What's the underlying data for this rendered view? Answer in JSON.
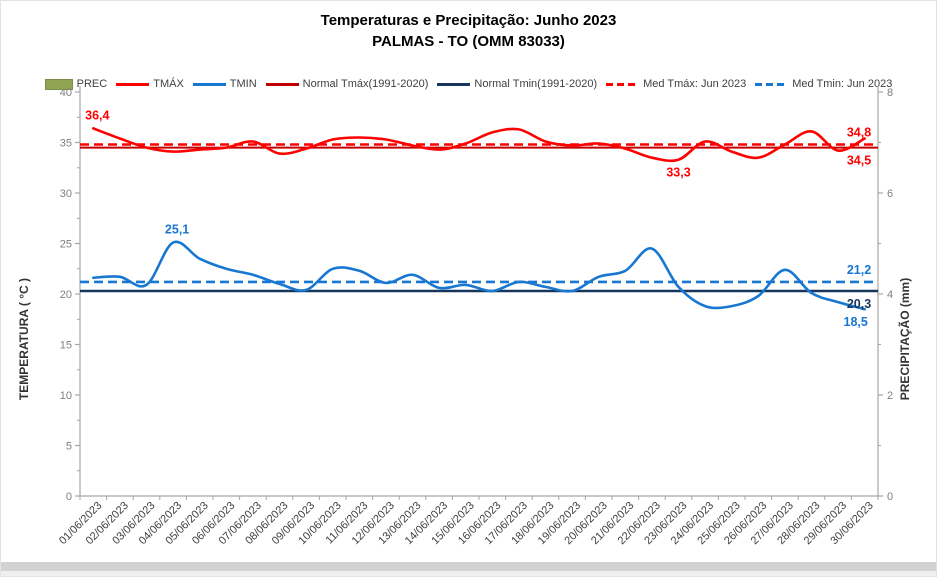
{
  "title": {
    "line1": "Temperaturas e Precipitação: Junho 2023",
    "line2": "PALMAS - TO (OMM 83033)"
  },
  "legend": {
    "items": [
      {
        "label": "PREC",
        "marker": "box",
        "color": "#8fa553",
        "border": "#7a8e44"
      },
      {
        "label": "TMÁX",
        "marker": "line",
        "color": "#ff0000"
      },
      {
        "label": "TMIN",
        "marker": "line",
        "color": "#1777d1"
      },
      {
        "label": "Normal Tmáx(1991-2020)",
        "marker": "line",
        "color": "#c00000"
      },
      {
        "label": "Normal Tmin(1991-2020)",
        "marker": "line",
        "color": "#17365d"
      },
      {
        "label": "Med Tmáx: Jun 2023",
        "marker": "dashed",
        "color": "#ff0000"
      },
      {
        "label": "Med Tmin: Jun 2023",
        "marker": "dashed",
        "color": "#1777d1"
      }
    ]
  },
  "axes": {
    "left": {
      "label": "TEMPERATURA ( °C )",
      "ticks": [
        0,
        5,
        10,
        15,
        20,
        25,
        30,
        35,
        40
      ],
      "range": [
        0,
        40
      ]
    },
    "right": {
      "label": "PRECIPITAÇÃO  (mm)",
      "ticks": [
        0,
        2,
        4,
        6,
        8
      ],
      "range": [
        0,
        8
      ]
    },
    "x": {
      "labels": [
        "01/06/2023",
        "02/06/2023",
        "03/06/2023",
        "04/06/2023",
        "05/06/2023",
        "06/06/2023",
        "07/06/2023",
        "08/06/2023",
        "09/06/2023",
        "10/06/2023",
        "11/06/2023",
        "12/06/2023",
        "13/06/2023",
        "14/06/2023",
        "15/06/2023",
        "16/06/2023",
        "17/06/2023",
        "18/06/2023",
        "19/06/2023",
        "20/06/2023",
        "21/06/2023",
        "22/06/2023",
        "23/06/2023",
        "24/06/2023",
        "25/06/2023",
        "26/06/2023",
        "27/06/2023",
        "28/06/2023",
        "29/06/2023",
        "30/06/2023"
      ]
    }
  },
  "chart_data": {
    "type": "line",
    "title": "Temperaturas e Precipitação: Junho 2023 — PALMAS - TO (OMM 83033)",
    "categories": [
      "01/06/2023",
      "02/06/2023",
      "03/06/2023",
      "04/06/2023",
      "05/06/2023",
      "06/06/2023",
      "07/06/2023",
      "08/06/2023",
      "09/06/2023",
      "10/06/2023",
      "11/06/2023",
      "12/06/2023",
      "13/06/2023",
      "14/06/2023",
      "15/06/2023",
      "16/06/2023",
      "17/06/2023",
      "18/06/2023",
      "19/06/2023",
      "20/06/2023",
      "21/06/2023",
      "22/06/2023",
      "23/06/2023",
      "24/06/2023",
      "25/06/2023",
      "26/06/2023",
      "27/06/2023",
      "28/06/2023",
      "29/06/2023",
      "30/06/2023"
    ],
    "ylabel_left": "TEMPERATURA ( °C )",
    "ylabel_right": "PRECIPITAÇÃO  (mm)",
    "ylim_left": [
      0,
      40
    ],
    "ylim_right": [
      0,
      8
    ],
    "grid": false,
    "legend_position": "top",
    "series": [
      {
        "name": "PREC",
        "kind": "bar",
        "axis": "right",
        "color": "#8fa553",
        "values": [
          0,
          0,
          0,
          0,
          0,
          0,
          0,
          0,
          0,
          0,
          0,
          0,
          0,
          0,
          0,
          0,
          0,
          0,
          0,
          0,
          0,
          0,
          0,
          0,
          0,
          0,
          0,
          0,
          0,
          0
        ]
      },
      {
        "name": "TMÁX",
        "kind": "smooth-line",
        "axis": "left",
        "color": "#ff0000",
        "width": 2.6,
        "values": [
          36.4,
          35.4,
          34.5,
          34.1,
          34.3,
          34.5,
          35.1,
          33.9,
          34.4,
          35.3,
          35.5,
          35.3,
          34.7,
          34.3,
          34.9,
          36.0,
          36.3,
          35.1,
          34.7,
          34.9,
          34.4,
          33.5,
          33.3,
          35.1,
          34.1,
          33.5,
          34.8,
          36.1,
          34.2,
          35.4
        ]
      },
      {
        "name": "TMIN",
        "kind": "smooth-line",
        "axis": "left",
        "color": "#1777d1",
        "width": 2.6,
        "values": [
          21.6,
          21.7,
          20.9,
          25.1,
          23.5,
          22.5,
          21.9,
          21.0,
          20.4,
          22.5,
          22.3,
          21.1,
          21.9,
          20.6,
          20.9,
          20.3,
          21.2,
          20.7,
          20.3,
          21.7,
          22.3,
          24.5,
          20.7,
          18.8,
          18.8,
          19.8,
          22.4,
          20.1,
          19.2,
          18.5
        ]
      },
      {
        "name": "Normal Tmáx(1991-2020)",
        "kind": "hline",
        "axis": "left",
        "color": "#c00000",
        "width": 2,
        "value": 34.5
      },
      {
        "name": "Normal Tmin(1991-2020)",
        "kind": "hline",
        "axis": "left",
        "color": "#17365d",
        "width": 2.6,
        "value": 20.3
      },
      {
        "name": "Med Tmáx: Jun 2023",
        "kind": "hline-dashed",
        "axis": "left",
        "color": "#ff0000",
        "width": 2.6,
        "value": 34.8
      },
      {
        "name": "Med Tmin: Jun 2023",
        "kind": "hline-dashed",
        "axis": "left",
        "color": "#1777d1",
        "width": 2.6,
        "value": 21.2
      }
    ],
    "annotations": [
      {
        "text": "36,4",
        "color": "#ff0000",
        "anchor": "point",
        "series": "TMÁX",
        "day_index": 0,
        "placement": "above"
      },
      {
        "text": "25,1",
        "color": "#1777d1",
        "anchor": "point",
        "series": "TMIN",
        "day_index": 3,
        "placement": "above"
      },
      {
        "text": "33,3",
        "color": "#ff0000",
        "anchor": "point",
        "series": "TMÁX",
        "day_index": 22,
        "placement": "below"
      },
      {
        "text": "18,5",
        "color": "#1777d1",
        "anchor": "point",
        "series": "TMIN",
        "day_index": 29,
        "placement": "below"
      },
      {
        "text": "34,8",
        "color": "#ff0000",
        "anchor": "line",
        "value": 34.8,
        "placement": "right-above"
      },
      {
        "text": "34,5",
        "color": "#ff0000",
        "anchor": "line",
        "value": 34.5,
        "placement": "right-below"
      },
      {
        "text": "21,2",
        "color": "#1777d1",
        "anchor": "line",
        "value": 21.2,
        "placement": "right-above"
      },
      {
        "text": "20,3",
        "color": "#17365d",
        "anchor": "line",
        "value": 20.3,
        "placement": "right-below"
      }
    ]
  }
}
